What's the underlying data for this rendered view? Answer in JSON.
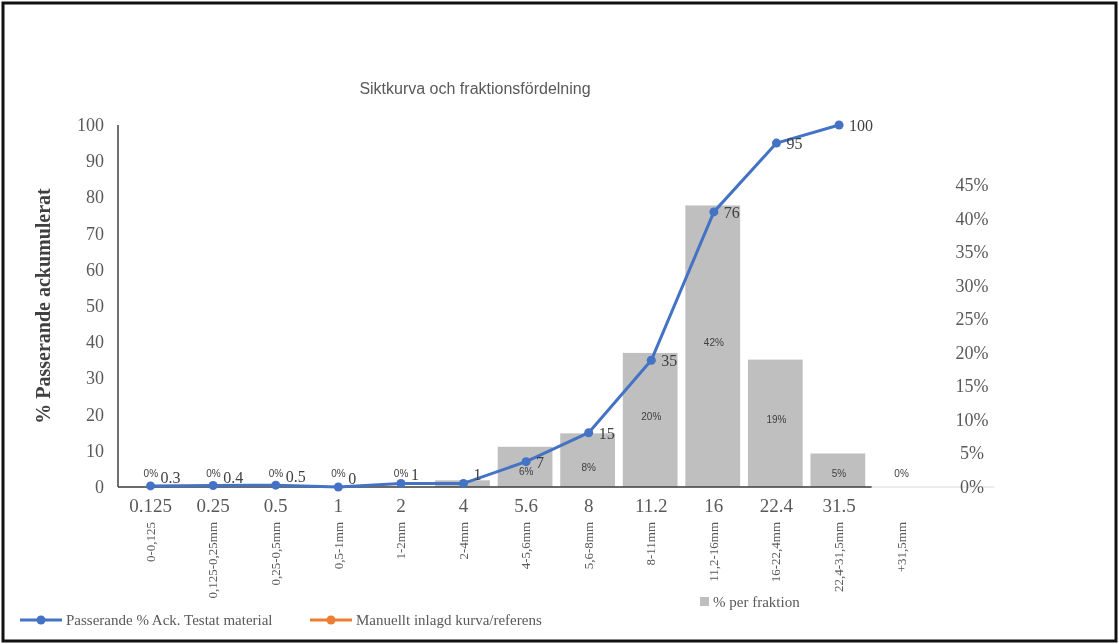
{
  "chart_data": {
    "type": "bar",
    "title": "Siktkurva och fraktionsfördelning",
    "ylabel": "% Passerande ackumulerat",
    "categories": [
      "0-0,125",
      "0,125-0,25mm",
      "0,25-0,5mm",
      "0,5-1mm",
      "1-2mm",
      "2-4mm",
      "4-5,6mm",
      "5,6-8mm",
      "8-11mm",
      "11,2-16mm",
      "16-22,4mm",
      "22,4-31,5mm",
      "+31,5mm"
    ],
    "annotations": [
      "0.125",
      "0.25",
      "0.5",
      "1",
      "2",
      "4",
      "5.6",
      "8",
      "11.2",
      "16",
      "22.4",
      "31.5"
    ],
    "ylim": [
      0,
      100
    ],
    "yticks": [
      0,
      10,
      20,
      30,
      40,
      50,
      60,
      70,
      80,
      90,
      100
    ],
    "y2lim": [
      0,
      54
    ],
    "y2ticks": [
      {
        "value": 0,
        "label": "0%"
      },
      {
        "value": 5,
        "label": "5%"
      },
      {
        "value": 10,
        "label": "10%"
      },
      {
        "value": 15,
        "label": "15%"
      },
      {
        "value": 20,
        "label": "20%"
      },
      {
        "value": 25,
        "label": "25%"
      },
      {
        "value": 30,
        "label": "30%"
      },
      {
        "value": 35,
        "label": "35%"
      },
      {
        "value": 40,
        "label": "40%"
      },
      {
        "value": 45,
        "label": "45%"
      }
    ],
    "grid": false,
    "legend": "bottom",
    "marker": "circle",
    "line_style": "solid",
    "data_labels": true,
    "series": [
      {
        "name": "% per fraktion",
        "axis": "y2",
        "color": "#bfbfbf",
        "values": [
          0,
          0,
          0,
          0,
          0,
          1,
          6,
          8,
          20,
          42,
          19,
          5,
          0
        ],
        "value_labels": [
          "0%",
          "0%",
          "0%",
          "0%",
          "0%",
          null,
          "6%",
          "8%",
          "20%",
          "42%",
          "19%",
          "5%",
          "0%"
        ]
      },
      {
        "name": "Passerande % Ack. Testat material",
        "type": "line",
        "color": "#4472c4",
        "values": [
          0.3,
          0.4,
          0.5,
          0,
          1,
          1,
          7,
          15,
          35,
          76,
          95,
          100,
          null
        ]
      },
      {
        "name": "Manuellt inlagd kurva/referens",
        "type": "line",
        "color": "#ed7d31",
        "values": [
          null,
          null,
          null,
          null,
          null,
          null,
          null,
          null,
          null,
          null,
          null,
          null,
          null
        ]
      }
    ]
  }
}
